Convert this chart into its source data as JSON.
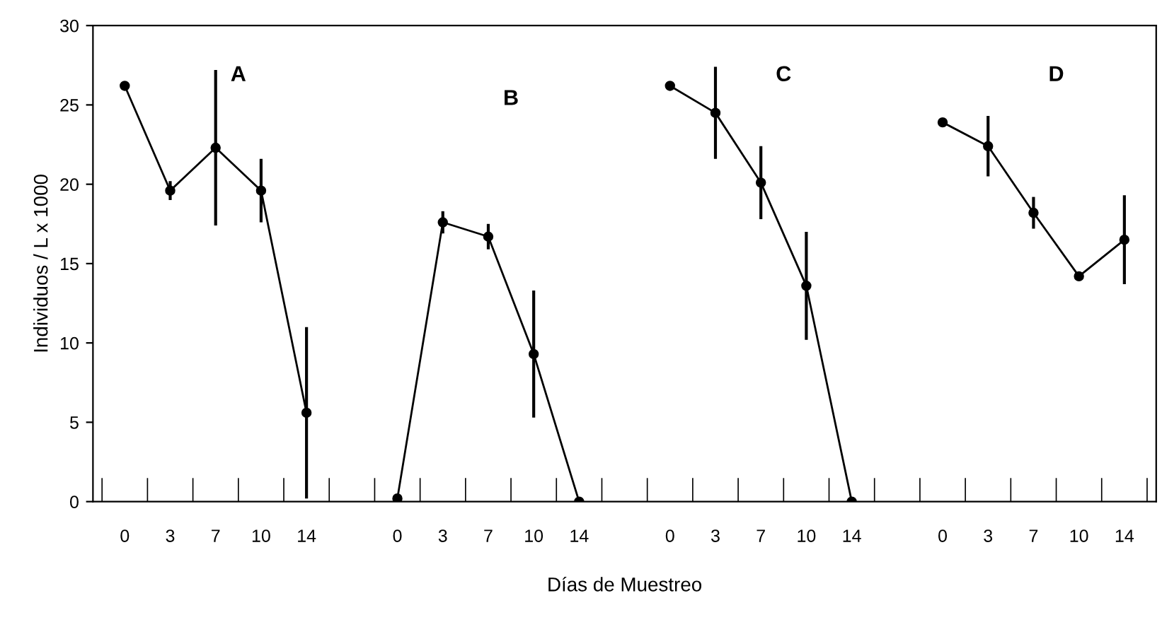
{
  "chart_data": {
    "type": "line",
    "xlabel": "Días de Muestreo",
    "ylabel": "Individuos / L x 1000",
    "categories": [
      "0",
      "3",
      "7",
      "10",
      "14",
      null,
      "0",
      "3",
      "7",
      "10",
      "14",
      null,
      "0",
      "3",
      "7",
      "10",
      "14",
      null,
      "0",
      "3",
      "7",
      "10",
      "14"
    ],
    "series": [
      {
        "color": "#000000",
        "values": [
          26.2,
          19.6,
          22.3,
          19.6,
          5.6,
          null,
          0.2,
          17.6,
          16.7,
          9.3,
          0,
          null,
          26.2,
          24.5,
          20.1,
          13.6,
          0,
          null,
          23.9,
          22.4,
          18.2,
          14.2,
          16.5
        ],
        "errors": [
          null,
          0.6,
          4.9,
          2,
          5.4,
          null,
          null,
          0.7,
          0.8,
          4,
          null,
          null,
          null,
          2.9,
          2.3,
          3.4,
          null,
          null,
          null,
          1.9,
          1,
          null,
          2.8
        ]
      }
    ],
    "annotations": [
      "A",
      "B",
      "C",
      "D"
    ],
    "marker": "circle",
    "ylim": [
      0,
      30
    ],
    "yticks": [
      0,
      5,
      10,
      15,
      20,
      25,
      30
    ],
    "grid": false,
    "legend": false
  }
}
